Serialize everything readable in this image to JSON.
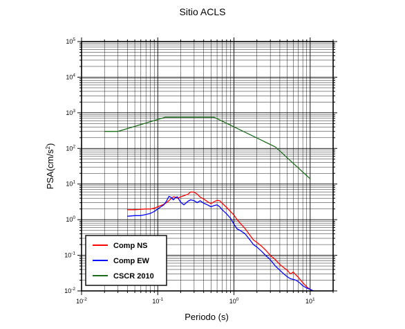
{
  "chart_data": {
    "type": "line",
    "title": "Sitio ACLS",
    "xlabel": "Periodo (s)",
    "ylabel_base": "PSA(cm/s",
    "ylabel_exp": "2",
    "ylabel_close": ")",
    "x_scale": "log",
    "y_scale": "log",
    "xlim": [
      0.01,
      20
    ],
    "ylim": [
      0.01,
      100000
    ],
    "grid": true,
    "legend_position": "bottom-left",
    "x_ticks": [
      {
        "value": 0.01,
        "base": "10",
        "exp": "-2"
      },
      {
        "value": 0.1,
        "base": "10",
        "exp": "-1"
      },
      {
        "value": 1,
        "base": "10",
        "exp": "0"
      },
      {
        "value": 10,
        "base": "10",
        "exp": "1"
      }
    ],
    "y_ticks": [
      {
        "value": 0.01,
        "base": "10",
        "exp": "-2"
      },
      {
        "value": 0.1,
        "base": "10",
        "exp": "-1"
      },
      {
        "value": 1,
        "base": "10",
        "exp": "0"
      },
      {
        "value": 10,
        "base": "10",
        "exp": "1"
      },
      {
        "value": 100,
        "base": "10",
        "exp": "2"
      },
      {
        "value": 1000,
        "base": "10",
        "exp": "3"
      },
      {
        "value": 10000,
        "base": "10",
        "exp": "4"
      },
      {
        "value": 100000,
        "base": "10",
        "exp": "5"
      }
    ],
    "series": [
      {
        "name": "Comp NS",
        "color": "#ff0000",
        "points": [
          [
            0.04,
            1.9
          ],
          [
            0.05,
            1.9
          ],
          [
            0.06,
            1.95
          ],
          [
            0.07,
            2.0
          ],
          [
            0.08,
            2.0
          ],
          [
            0.09,
            2.1
          ],
          [
            0.1,
            2.3
          ],
          [
            0.11,
            2.5
          ],
          [
            0.12,
            2.7
          ],
          [
            0.13,
            3.0
          ],
          [
            0.14,
            3.4
          ],
          [
            0.15,
            3.9
          ],
          [
            0.16,
            4.4
          ],
          [
            0.17,
            4.3
          ],
          [
            0.18,
            4.0
          ],
          [
            0.2,
            4.4
          ],
          [
            0.22,
            4.7
          ],
          [
            0.25,
            5.2
          ],
          [
            0.27,
            6.0
          ],
          [
            0.3,
            5.9
          ],
          [
            0.33,
            5.2
          ],
          [
            0.36,
            4.3
          ],
          [
            0.4,
            3.8
          ],
          [
            0.45,
            3.2
          ],
          [
            0.5,
            2.8
          ],
          [
            0.55,
            3.2
          ],
          [
            0.6,
            3.5
          ],
          [
            0.65,
            3.4
          ],
          [
            0.7,
            2.9
          ],
          [
            0.8,
            2.2
          ],
          [
            0.9,
            1.7
          ],
          [
            1.0,
            1.35
          ],
          [
            1.1,
            1.0
          ],
          [
            1.2,
            0.8
          ],
          [
            1.4,
            0.56
          ],
          [
            1.6,
            0.38
          ],
          [
            1.8,
            0.27
          ],
          [
            2.0,
            0.23
          ],
          [
            2.3,
            0.18
          ],
          [
            2.6,
            0.14
          ],
          [
            3.0,
            0.1
          ],
          [
            3.5,
            0.075
          ],
          [
            4.0,
            0.055
          ],
          [
            4.5,
            0.045
          ],
          [
            5.0,
            0.038
          ],
          [
            5.5,
            0.03
          ],
          [
            6.0,
            0.034
          ],
          [
            6.5,
            0.028
          ],
          [
            7.0,
            0.024
          ],
          [
            7.5,
            0.02
          ],
          [
            8.0,
            0.017
          ],
          [
            9.0,
            0.013
          ],
          [
            10.0,
            0.011
          ],
          [
            11.0,
            0.01
          ]
        ]
      },
      {
        "name": "Comp EW",
        "color": "#0000ff",
        "points": [
          [
            0.04,
            1.25
          ],
          [
            0.05,
            1.3
          ],
          [
            0.06,
            1.3
          ],
          [
            0.07,
            1.4
          ],
          [
            0.08,
            1.5
          ],
          [
            0.09,
            1.7
          ],
          [
            0.1,
            2.0
          ],
          [
            0.11,
            2.3
          ],
          [
            0.12,
            2.6
          ],
          [
            0.13,
            3.3
          ],
          [
            0.14,
            4.5
          ],
          [
            0.15,
            4.2
          ],
          [
            0.16,
            3.6
          ],
          [
            0.17,
            4.1
          ],
          [
            0.18,
            4.4
          ],
          [
            0.2,
            3.1
          ],
          [
            0.22,
            2.6
          ],
          [
            0.25,
            3.3
          ],
          [
            0.27,
            3.6
          ],
          [
            0.3,
            3.4
          ],
          [
            0.33,
            3.0
          ],
          [
            0.36,
            3.4
          ],
          [
            0.4,
            2.9
          ],
          [
            0.45,
            2.6
          ],
          [
            0.5,
            2.3
          ],
          [
            0.55,
            2.5
          ],
          [
            0.6,
            2.6
          ],
          [
            0.65,
            2.3
          ],
          [
            0.7,
            1.9
          ],
          [
            0.8,
            1.45
          ],
          [
            0.9,
            1.1
          ],
          [
            1.0,
            0.75
          ],
          [
            1.1,
            0.55
          ],
          [
            1.2,
            0.5
          ],
          [
            1.4,
            0.4
          ],
          [
            1.6,
            0.28
          ],
          [
            1.8,
            0.2
          ],
          [
            2.0,
            0.17
          ],
          [
            2.3,
            0.13
          ],
          [
            2.6,
            0.1
          ],
          [
            3.0,
            0.075
          ],
          [
            3.5,
            0.05
          ],
          [
            4.0,
            0.038
          ],
          [
            4.5,
            0.03
          ],
          [
            5.0,
            0.025
          ],
          [
            5.5,
            0.022
          ],
          [
            6.0,
            0.021
          ],
          [
            6.5,
            0.02
          ],
          [
            7.0,
            0.018
          ],
          [
            7.5,
            0.016
          ],
          [
            8.0,
            0.014
          ],
          [
            9.0,
            0.012
          ],
          [
            10.0,
            0.011
          ],
          [
            11.0,
            0.01
          ]
        ]
      },
      {
        "name": "CSCR 2010",
        "color": "#1a6b1a",
        "points": [
          [
            0.02,
            300
          ],
          [
            0.03,
            300
          ],
          [
            0.125,
            750
          ],
          [
            0.55,
            750
          ],
          [
            3.5,
            110
          ],
          [
            10.0,
            14
          ]
        ]
      }
    ]
  }
}
